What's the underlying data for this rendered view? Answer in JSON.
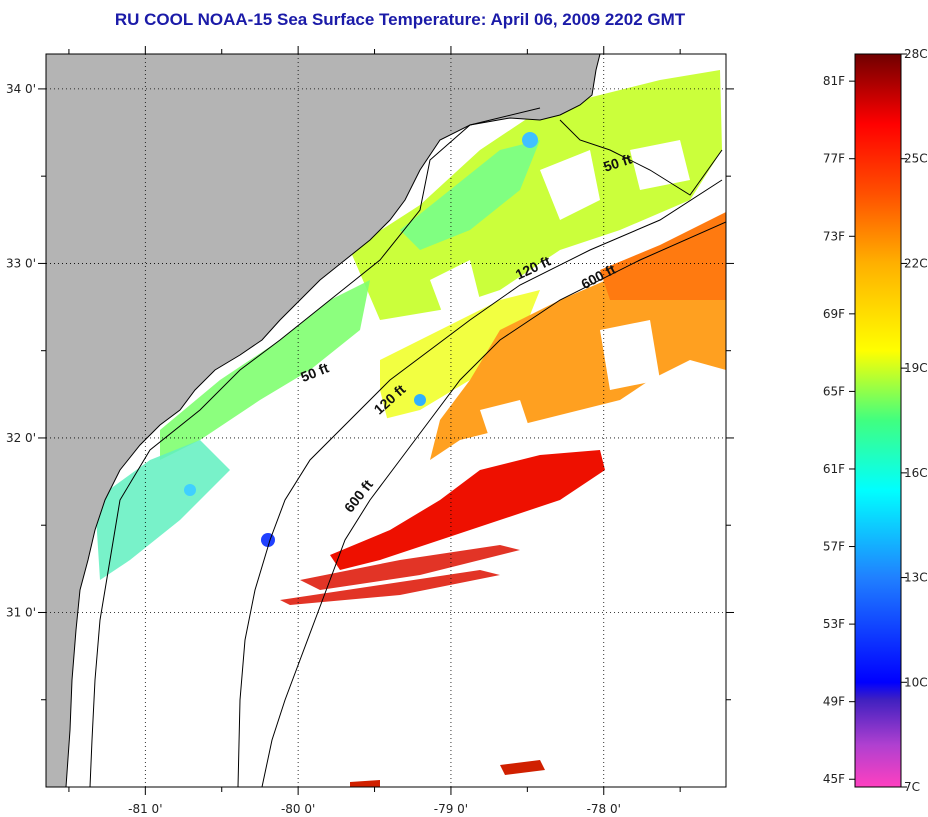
{
  "title": "RU COOL  NOAA-15  Sea Surface Temperature:  April 06, 2009 2202 GMT",
  "colors": {
    "land": "#b4b4b4",
    "ocean_missing": "#ffffff",
    "coast": "#000000",
    "title": "#1b1ba8"
  },
  "map": {
    "lon_range": [
      -81.65,
      -77.2
    ],
    "lat_range": [
      30.0,
      34.2
    ],
    "x_ticks": [
      {
        "value": -81,
        "label": "-81 0'"
      },
      {
        "value": -80,
        "label": "-80 0'"
      },
      {
        "value": -79,
        "label": "-79 0'"
      },
      {
        "value": -78,
        "label": "-78 0'"
      }
    ],
    "y_ticks": [
      {
        "value": 34,
        "label": "34 0'"
      },
      {
        "value": 33,
        "label": "33 0'"
      },
      {
        "value": 32,
        "label": "32 0'"
      },
      {
        "value": 31,
        "label": "31 0'"
      }
    ],
    "grid": "dotted",
    "contour_labels": [
      {
        "text": "50 ft",
        "lon": -77.9,
        "lat": 33.55,
        "angle": -18
      },
      {
        "text": "120 ft",
        "lon": -78.45,
        "lat": 32.95,
        "angle": -25
      },
      {
        "text": "600 ft",
        "lon": -78.02,
        "lat": 32.9,
        "angle": -28
      },
      {
        "text": "50 ft",
        "lon": -79.88,
        "lat": 32.35,
        "angle": -22
      },
      {
        "text": "120 ft",
        "lon": -79.38,
        "lat": 32.2,
        "angle": -42
      },
      {
        "text": "600 ft",
        "lon": -79.58,
        "lat": 31.65,
        "angle": -52
      }
    ]
  },
  "colorbar": {
    "fahrenheit": [
      {
        "value": 81,
        "label": "81F"
      },
      {
        "value": 77,
        "label": "77F"
      },
      {
        "value": 73,
        "label": "73F"
      },
      {
        "value": 69,
        "label": "69F"
      },
      {
        "value": 65,
        "label": "65F"
      },
      {
        "value": 61,
        "label": "61F"
      },
      {
        "value": 57,
        "label": "57F"
      },
      {
        "value": 53,
        "label": "53F"
      },
      {
        "value": 49,
        "label": "49F"
      },
      {
        "value": 45,
        "label": "45F"
      }
    ],
    "celsius": [
      {
        "value": 28,
        "label": "28C"
      },
      {
        "value": 25,
        "label": "25C"
      },
      {
        "value": 22,
        "label": "22C"
      },
      {
        "value": 19,
        "label": "19C"
      },
      {
        "value": 16,
        "label": "16C"
      },
      {
        "value": 13,
        "label": "13C"
      },
      {
        "value": 10,
        "label": "10C"
      },
      {
        "value": 7,
        "label": "7C"
      }
    ],
    "range_c": [
      7,
      28
    ],
    "stops": [
      {
        "c": 7,
        "color": "#ff40c0"
      },
      {
        "c": 8.2,
        "color": "#b040d0"
      },
      {
        "c": 9.5,
        "color": "#4020c0"
      },
      {
        "c": 10,
        "color": "#0000ff"
      },
      {
        "c": 13,
        "color": "#2080ff"
      },
      {
        "c": 15.5,
        "color": "#00ffff"
      },
      {
        "c": 17.5,
        "color": "#40ff80"
      },
      {
        "c": 19.5,
        "color": "#ffff00"
      },
      {
        "c": 22,
        "color": "#ffb000"
      },
      {
        "c": 24,
        "color": "#ff5000"
      },
      {
        "c": 26,
        "color": "#ff0000"
      },
      {
        "c": 28,
        "color": "#700000"
      }
    ]
  }
}
